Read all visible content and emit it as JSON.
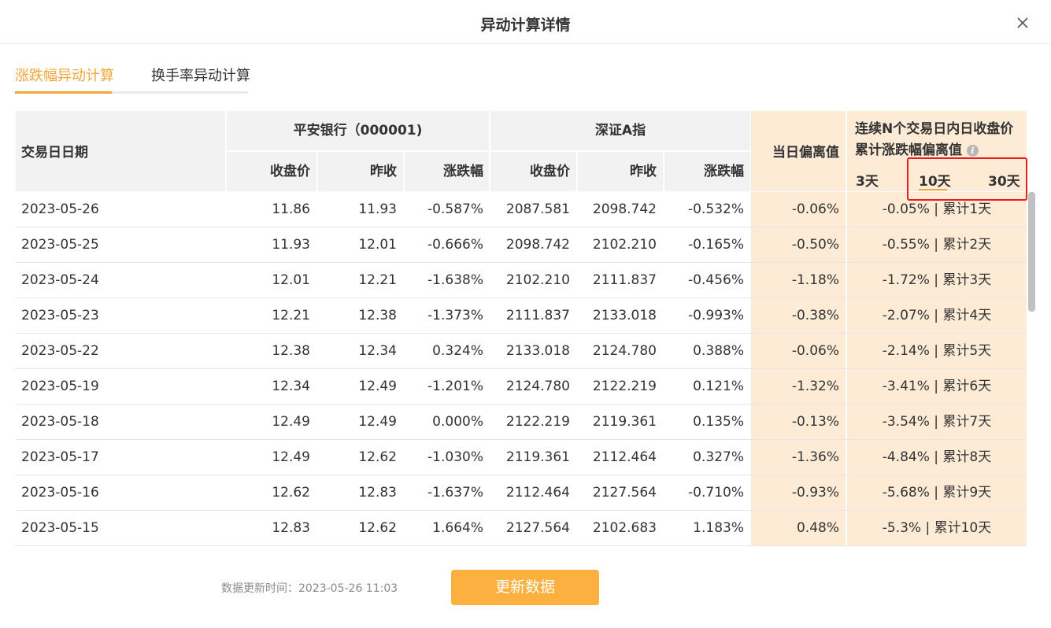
{
  "dialog": {
    "title": "异动计算详情"
  },
  "tabs": [
    {
      "label": "涨跌幅异动计算",
      "active": true
    },
    {
      "label": "换手率异动计算",
      "active": false
    }
  ],
  "table": {
    "header": {
      "date": "交易日日期",
      "stock": "平安银行（000001)",
      "index": "深证A指",
      "close": "收盘价",
      "prev": "昨收",
      "change": "涨跌幅",
      "deviation": "当日偏离值",
      "cum_line1": "连续N个交易日内日收盘价",
      "cum_line2": "累计涨跌幅偏离值",
      "days": [
        "3天",
        "10天",
        "30天"
      ],
      "active_days": "10天"
    },
    "rows": [
      {
        "date": "2023-05-26",
        "s_close": "11.86",
        "s_prev": "11.93",
        "s_chg": "-0.587%",
        "i_close": "2087.581",
        "i_prev": "2098.742",
        "i_chg": "-0.532%",
        "dev": "-0.06%",
        "cum": "-0.05%",
        "cum_label": "累计1天"
      },
      {
        "date": "2023-05-25",
        "s_close": "11.93",
        "s_prev": "12.01",
        "s_chg": "-0.666%",
        "i_close": "2098.742",
        "i_prev": "2102.210",
        "i_chg": "-0.165%",
        "dev": "-0.50%",
        "cum": "-0.55%",
        "cum_label": "累计2天"
      },
      {
        "date": "2023-05-24",
        "s_close": "12.01",
        "s_prev": "12.21",
        "s_chg": "-1.638%",
        "i_close": "2102.210",
        "i_prev": "2111.837",
        "i_chg": "-0.456%",
        "dev": "-1.18%",
        "cum": "-1.72%",
        "cum_label": "累计3天"
      },
      {
        "date": "2023-05-23",
        "s_close": "12.21",
        "s_prev": "12.38",
        "s_chg": "-1.373%",
        "i_close": "2111.837",
        "i_prev": "2133.018",
        "i_chg": "-0.993%",
        "dev": "-0.38%",
        "cum": "-2.07%",
        "cum_label": "累计4天"
      },
      {
        "date": "2023-05-22",
        "s_close": "12.38",
        "s_prev": "12.34",
        "s_chg": "0.324%",
        "i_close": "2133.018",
        "i_prev": "2124.780",
        "i_chg": "0.388%",
        "dev": "-0.06%",
        "cum": "-2.14%",
        "cum_label": "累计5天"
      },
      {
        "date": "2023-05-19",
        "s_close": "12.34",
        "s_prev": "12.49",
        "s_chg": "-1.201%",
        "i_close": "2124.780",
        "i_prev": "2122.219",
        "i_chg": "0.121%",
        "dev": "-1.32%",
        "cum": "-3.41%",
        "cum_label": "累计6天"
      },
      {
        "date": "2023-05-18",
        "s_close": "12.49",
        "s_prev": "12.49",
        "s_chg": "0.000%",
        "i_close": "2122.219",
        "i_prev": "2119.361",
        "i_chg": "0.135%",
        "dev": "-0.13%",
        "cum": "-3.54%",
        "cum_label": "累计7天"
      },
      {
        "date": "2023-05-17",
        "s_close": "12.49",
        "s_prev": "12.62",
        "s_chg": "-1.030%",
        "i_close": "2119.361",
        "i_prev": "2112.464",
        "i_chg": "0.327%",
        "dev": "-1.36%",
        "cum": "-4.84%",
        "cum_label": "累计8天"
      },
      {
        "date": "2023-05-16",
        "s_close": "12.62",
        "s_prev": "12.83",
        "s_chg": "-1.637%",
        "i_close": "2112.464",
        "i_prev": "2127.564",
        "i_chg": "-0.710%",
        "dev": "-0.93%",
        "cum": "-5.68%",
        "cum_label": "累计9天"
      },
      {
        "date": "2023-05-15",
        "s_close": "12.83",
        "s_prev": "12.62",
        "s_chg": "1.664%",
        "i_close": "2127.564",
        "i_prev": "2102.683",
        "i_chg": "1.183%",
        "dev": "0.48%",
        "cum": "-5.3%",
        "cum_label": "累计10天"
      }
    ]
  },
  "footer": {
    "update_time_label": "数据更新时间：",
    "update_time": "2023-05-26 11:03",
    "update_button": "更新数据"
  },
  "colors": {
    "accent": "#f5a53a",
    "button": "#fbb040",
    "highlight_bg": "#fdebd6",
    "annotation_box": "#e81e1e"
  },
  "icons": {
    "close": "close-icon",
    "info": "info-icon"
  }
}
